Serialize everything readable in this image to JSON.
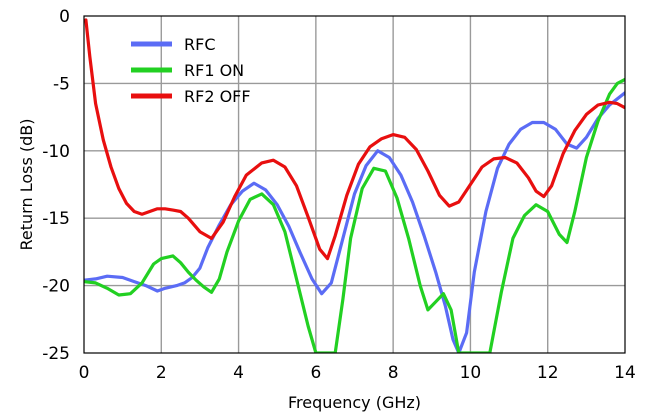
{
  "chart_data": {
    "type": "line",
    "title": "",
    "xlabel": "Frequency (GHz)",
    "ylabel": "Return Loss (dB)",
    "xlim": [
      0,
      14
    ],
    "ylim": [
      -25,
      0
    ],
    "xticks": [
      0,
      2,
      4,
      6,
      8,
      10,
      12,
      14
    ],
    "yticks": [
      0,
      -5,
      -10,
      -15,
      -20,
      -25
    ],
    "grid": true,
    "legend_position": "top-left",
    "series": [
      {
        "name": "RFC",
        "color": "#5b6cf5",
        "points": [
          [
            0.0,
            -19.6
          ],
          [
            0.3,
            -19.5
          ],
          [
            0.6,
            -19.3
          ],
          [
            1.0,
            -19.4
          ],
          [
            1.3,
            -19.7
          ],
          [
            1.6,
            -20.0
          ],
          [
            1.9,
            -20.4
          ],
          [
            2.1,
            -20.2
          ],
          [
            2.4,
            -20.0
          ],
          [
            2.6,
            -19.8
          ],
          [
            2.8,
            -19.4
          ],
          [
            3.0,
            -18.7
          ],
          [
            3.2,
            -17.2
          ],
          [
            3.5,
            -15.5
          ],
          [
            3.8,
            -14.0
          ],
          [
            4.1,
            -13.0
          ],
          [
            4.4,
            -12.4
          ],
          [
            4.7,
            -12.9
          ],
          [
            5.0,
            -14.0
          ],
          [
            5.3,
            -15.6
          ],
          [
            5.6,
            -17.6
          ],
          [
            5.9,
            -19.5
          ],
          [
            6.15,
            -20.6
          ],
          [
            6.4,
            -19.8
          ],
          [
            6.7,
            -16.5
          ],
          [
            7.0,
            -13.2
          ],
          [
            7.3,
            -11.1
          ],
          [
            7.6,
            -10.0
          ],
          [
            7.9,
            -10.5
          ],
          [
            8.2,
            -11.8
          ],
          [
            8.5,
            -13.8
          ],
          [
            8.8,
            -16.3
          ],
          [
            9.1,
            -19.0
          ],
          [
            9.35,
            -21.5
          ],
          [
            9.55,
            -24.0
          ],
          [
            9.7,
            -25.0
          ],
          [
            9.9,
            -23.5
          ],
          [
            10.1,
            -19.0
          ],
          [
            10.4,
            -14.5
          ],
          [
            10.7,
            -11.3
          ],
          [
            11.0,
            -9.5
          ],
          [
            11.3,
            -8.4
          ],
          [
            11.6,
            -7.9
          ],
          [
            11.9,
            -7.9
          ],
          [
            12.2,
            -8.4
          ],
          [
            12.5,
            -9.5
          ],
          [
            12.75,
            -9.8
          ],
          [
            13.0,
            -9.0
          ],
          [
            13.3,
            -7.6
          ],
          [
            13.6,
            -6.6
          ],
          [
            14.0,
            -5.7
          ]
        ]
      },
      {
        "name": "RF1 ON",
        "color": "#22d022",
        "points": [
          [
            0.0,
            -19.7
          ],
          [
            0.3,
            -19.8
          ],
          [
            0.6,
            -20.2
          ],
          [
            0.9,
            -20.7
          ],
          [
            1.2,
            -20.6
          ],
          [
            1.5,
            -19.8
          ],
          [
            1.8,
            -18.4
          ],
          [
            2.0,
            -18.0
          ],
          [
            2.3,
            -17.8
          ],
          [
            2.5,
            -18.3
          ],
          [
            2.7,
            -19.0
          ],
          [
            2.9,
            -19.6
          ],
          [
            3.1,
            -20.1
          ],
          [
            3.3,
            -20.5
          ],
          [
            3.5,
            -19.5
          ],
          [
            3.7,
            -17.5
          ],
          [
            4.0,
            -15.2
          ],
          [
            4.3,
            -13.6
          ],
          [
            4.6,
            -13.2
          ],
          [
            4.9,
            -14.0
          ],
          [
            5.2,
            -16.0
          ],
          [
            5.5,
            -19.5
          ],
          [
            5.8,
            -23.0
          ],
          [
            6.0,
            -25.0
          ],
          [
            6.5,
            -25.0
          ],
          [
            6.7,
            -21.0
          ],
          [
            6.9,
            -16.5
          ],
          [
            7.2,
            -12.8
          ],
          [
            7.5,
            -11.3
          ],
          [
            7.8,
            -11.5
          ],
          [
            8.1,
            -13.5
          ],
          [
            8.4,
            -16.5
          ],
          [
            8.7,
            -20.0
          ],
          [
            8.9,
            -21.8
          ],
          [
            9.1,
            -21.2
          ],
          [
            9.3,
            -20.6
          ],
          [
            9.5,
            -21.8
          ],
          [
            9.7,
            -25.0
          ],
          [
            10.5,
            -25.0
          ],
          [
            10.8,
            -20.5
          ],
          [
            11.1,
            -16.5
          ],
          [
            11.4,
            -14.8
          ],
          [
            11.7,
            -14.0
          ],
          [
            12.0,
            -14.5
          ],
          [
            12.3,
            -16.2
          ],
          [
            12.5,
            -16.8
          ],
          [
            12.7,
            -14.5
          ],
          [
            13.0,
            -10.5
          ],
          [
            13.3,
            -7.8
          ],
          [
            13.6,
            -5.8
          ],
          [
            13.8,
            -5.0
          ],
          [
            14.0,
            -4.7
          ]
        ]
      },
      {
        "name": "RF2 OFF",
        "color": "#e80f0f",
        "points": [
          [
            0.05,
            -0.3
          ],
          [
            0.15,
            -3.0
          ],
          [
            0.3,
            -6.5
          ],
          [
            0.5,
            -9.2
          ],
          [
            0.7,
            -11.2
          ],
          [
            0.9,
            -12.8
          ],
          [
            1.1,
            -13.9
          ],
          [
            1.3,
            -14.5
          ],
          [
            1.5,
            -14.7
          ],
          [
            1.7,
            -14.5
          ],
          [
            1.9,
            -14.3
          ],
          [
            2.1,
            -14.3
          ],
          [
            2.3,
            -14.4
          ],
          [
            2.5,
            -14.5
          ],
          [
            2.7,
            -15.0
          ],
          [
            3.0,
            -16.0
          ],
          [
            3.3,
            -16.5
          ],
          [
            3.6,
            -15.3
          ],
          [
            3.9,
            -13.4
          ],
          [
            4.2,
            -11.8
          ],
          [
            4.6,
            -10.9
          ],
          [
            4.9,
            -10.7
          ],
          [
            5.2,
            -11.2
          ],
          [
            5.5,
            -12.6
          ],
          [
            5.8,
            -14.9
          ],
          [
            6.1,
            -17.3
          ],
          [
            6.3,
            -18.0
          ],
          [
            6.5,
            -16.3
          ],
          [
            6.8,
            -13.3
          ],
          [
            7.1,
            -11.0
          ],
          [
            7.4,
            -9.7
          ],
          [
            7.7,
            -9.1
          ],
          [
            8.0,
            -8.8
          ],
          [
            8.3,
            -9.0
          ],
          [
            8.6,
            -9.9
          ],
          [
            8.9,
            -11.5
          ],
          [
            9.2,
            -13.3
          ],
          [
            9.45,
            -14.1
          ],
          [
            9.7,
            -13.8
          ],
          [
            10.0,
            -12.5
          ],
          [
            10.3,
            -11.2
          ],
          [
            10.6,
            -10.6
          ],
          [
            10.9,
            -10.5
          ],
          [
            11.2,
            -10.9
          ],
          [
            11.5,
            -12.0
          ],
          [
            11.7,
            -13.0
          ],
          [
            11.9,
            -13.4
          ],
          [
            12.1,
            -12.6
          ],
          [
            12.4,
            -10.2
          ],
          [
            12.7,
            -8.5
          ],
          [
            13.0,
            -7.3
          ],
          [
            13.3,
            -6.6
          ],
          [
            13.6,
            -6.4
          ],
          [
            13.8,
            -6.5
          ],
          [
            14.0,
            -6.8
          ]
        ]
      }
    ]
  }
}
